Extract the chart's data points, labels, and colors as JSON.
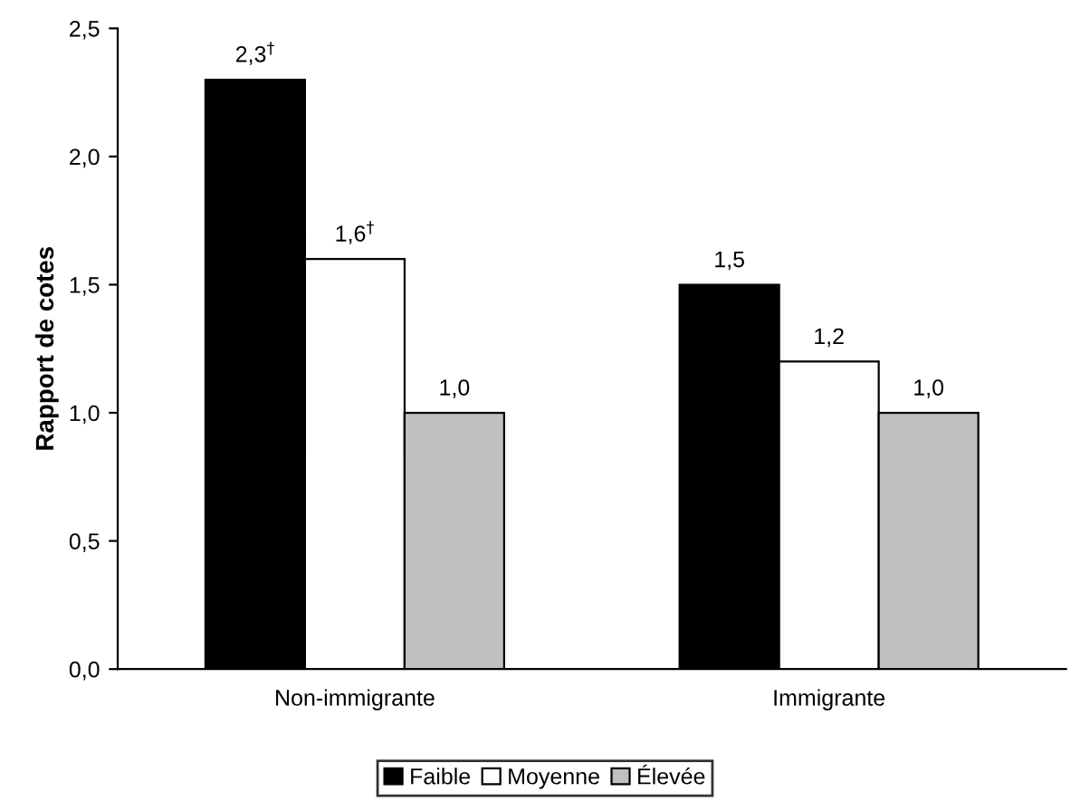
{
  "chart_data": {
    "type": "bar",
    "ylabel": "Rapport de cotes",
    "categories": [
      "Non-immigrante",
      "Immigrante"
    ],
    "series": [
      {
        "name": "Faible",
        "color": "#000000",
        "values": [
          2.3,
          1.5
        ],
        "value_labels": [
          "2,3$^{†}$",
          "1,5"
        ]
      },
      {
        "name": "Moyenne",
        "color": "#ffffff",
        "values": [
          1.6,
          1.2
        ],
        "value_labels": [
          "1,6$^{†}$",
          "1,2"
        ]
      },
      {
        "name": "Élevée",
        "color": "#c0c0c0",
        "values": [
          1.0,
          1.0
        ],
        "value_labels": [
          "1,0",
          "1,0"
        ]
      }
    ],
    "ylim": [
      0,
      2.5
    ],
    "yticks": [
      {
        "value": 0,
        "label": "0,0"
      },
      {
        "value": 0.5,
        "label": "0,5"
      },
      {
        "value": 1,
        "label": "1,0"
      },
      {
        "value": 1.5,
        "label": "1,5"
      },
      {
        "value": 2,
        "label": "2,0"
      },
      {
        "value": 2.5,
        "label": "2,5"
      }
    ],
    "grid": false,
    "legend": "bottom"
  }
}
